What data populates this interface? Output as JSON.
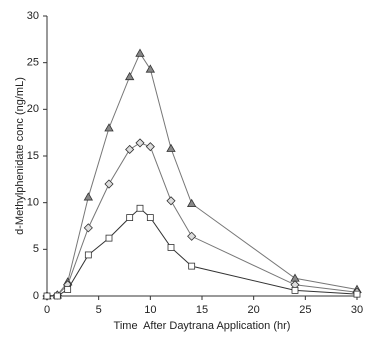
{
  "chart_data": {
    "type": "line",
    "x_label": "Time  After Daytrana Application (hr)",
    "y_label": "d-Methylphenidate conc (ng/mL)",
    "x": [
      0,
      1,
      2,
      4,
      6,
      8,
      9,
      10,
      12,
      14,
      24,
      30
    ],
    "series": [
      {
        "color": "#777777",
        "marker": "triangle",
        "values": [
          0,
          0.1,
          1.5,
          10.6,
          18,
          23.5,
          26,
          24.3,
          15.8,
          9.9,
          1.9,
          0.7
        ]
      },
      {
        "color": "#777777",
        "marker": "diamond",
        "values": [
          0,
          0.1,
          1.2,
          7.3,
          12,
          15.7,
          16.4,
          16,
          10.2,
          6.4,
          1.2,
          0.4
        ]
      },
      {
        "color": "#333333",
        "marker": "square",
        "values": [
          0,
          0,
          0.7,
          4.4,
          6.2,
          8.4,
          9.4,
          8.4,
          5.2,
          3.2,
          0.6,
          0.2
        ]
      }
    ],
    "xlim": [
      0,
      30
    ],
    "xticks": [
      0,
      5,
      10,
      15,
      20,
      25,
      30
    ],
    "ylim": [
      0,
      30
    ],
    "yticks": [
      0,
      5,
      10,
      15,
      20,
      25,
      30
    ],
    "grid": false
  }
}
